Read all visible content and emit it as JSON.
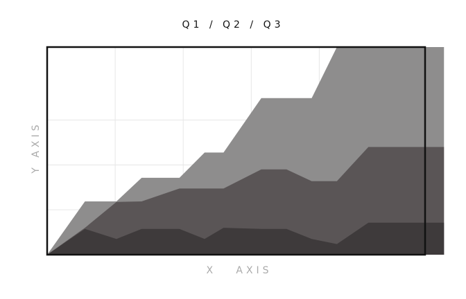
{
  "chart_data": {
    "type": "area",
    "title": "Q1  /  Q2  /  Q3",
    "xlabel": "X   AXIS",
    "ylabel": "Y AXIS",
    "stacked": false,
    "x": [
      0,
      0.6,
      1.1,
      1.5,
      2.1,
      2.5,
      2.8,
      3.4,
      3.8,
      4.2,
      4.6,
      5.1,
      5.5,
      6.0,
      6.3
    ],
    "xlim": [
      0,
      6.0
    ],
    "ylim": [
      0,
      3.7
    ],
    "grid": true,
    "legend": "none",
    "series": [
      {
        "color": "#8e8d8d",
        "values": [
          0,
          0.95,
          0.95,
          1.37,
          1.37,
          1.82,
          1.82,
          2.79,
          2.79,
          2.79,
          3.7,
          3.7,
          3.7,
          3.7,
          3.7
        ]
      },
      {
        "color": "#5a5556",
        "values": [
          0,
          0.48,
          0.94,
          0.95,
          1.18,
          1.18,
          1.18,
          1.52,
          1.52,
          1.31,
          1.31,
          1.92,
          1.92,
          1.92,
          1.92
        ]
      },
      {
        "color": "#3e3a3b",
        "values": [
          0,
          0.46,
          0.28,
          0.46,
          0.46,
          0.28,
          0.48,
          0.46,
          0.46,
          0.28,
          0.19,
          0.57,
          0.57,
          0.57,
          0.57
        ]
      }
    ]
  }
}
